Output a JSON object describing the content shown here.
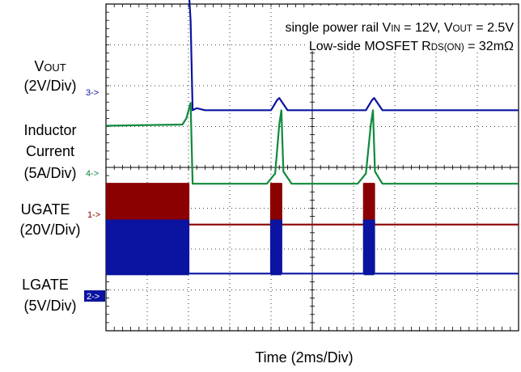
{
  "chart_data": {
    "type": "line",
    "title_lines": [
      "single power rail V_IN = 12V, V_OUT = 2.5V",
      "Low-side MOSFET R_DS(ON) = 32mΩ"
    ],
    "title_parts": [
      [
        {
          "t": "single power rail V"
        },
        {
          "t": "IN",
          "sub": true
        },
        {
          "t": " = 12V, V"
        },
        {
          "t": "OUT",
          "sub": true
        },
        {
          "t": " = 2.5V"
        }
      ],
      [
        {
          "t": "Low-side MOSFET R"
        },
        {
          "t": "DS(ON)",
          "sub": true
        },
        {
          "t": " = 32mΩ"
        }
      ]
    ],
    "xlabel": "Time (2ms/Div)",
    "x_divisions": 10,
    "y_divisions": 8,
    "x_unit": "div",
    "grid": true,
    "channel_labels": [
      {
        "name": "V_OUT",
        "parts": [
          {
            "t": "V"
          },
          {
            "t": "OUT",
            "sub": true
          }
        ],
        "scale": "(2V/Div)",
        "marker": "3->",
        "color": "#0a14a0"
      },
      {
        "name": "Inductor Current",
        "lines": [
          "Inductor",
          "Current"
        ],
        "scale": "(5A/Div)",
        "marker": "4->",
        "color": "#108a3c"
      },
      {
        "name": "UGATE",
        "scale": "(20V/Div)",
        "marker": "1->",
        "color": "#8b0000"
      },
      {
        "name": "LGATE",
        "scale": "(5V/Div)",
        "marker": "2->",
        "color": "#0a14a0"
      }
    ],
    "series": [
      {
        "name": "V_OUT",
        "color": "#0a14a0",
        "baseline_div": 1.4,
        "x": [
          0,
          1.95,
          2.0,
          2.05,
          2.1,
          2.2,
          2.4,
          4.0,
          4.15,
          4.2,
          4.3,
          4.4,
          6.3,
          6.45,
          6.5,
          6.6,
          6.7,
          10
        ],
        "y": [
          3.2,
          3.2,
          3.05,
          2.2,
          0.0,
          0.05,
          0.0,
          0.0,
          0.25,
          0.3,
          0.15,
          0.0,
          0.0,
          0.25,
          0.3,
          0.15,
          0.0,
          0.0
        ]
      },
      {
        "name": "Inductor Current",
        "color": "#108a3c",
        "baseline_div": -0.4,
        "x": [
          0,
          1.85,
          1.95,
          2.05,
          2.1,
          2.3,
          3.9,
          4.1,
          4.2,
          4.25,
          4.3,
          4.5,
          6.1,
          6.3,
          6.42,
          6.47,
          6.52,
          6.7,
          10
        ],
        "y": [
          1.42,
          1.45,
          1.6,
          1.98,
          0.0,
          0.0,
          0.0,
          0.25,
          1.45,
          1.8,
          0.3,
          0.0,
          0.0,
          0.25,
          1.45,
          1.8,
          0.3,
          0.0,
          0.0
        ]
      },
      {
        "name": "UGATE",
        "color": "#8b0000",
        "baseline_div": -1.4,
        "x": [
          0,
          2.0,
          2.0,
          4.0,
          4.0,
          4.25,
          4.25,
          6.25,
          6.25,
          6.5,
          6.5,
          10
        ],
        "y": [
          1.0,
          1.0,
          0.0,
          0.0,
          1.0,
          1.0,
          0.0,
          0.0,
          1.0,
          1.0,
          0.0,
          0.0
        ],
        "dense_switching": [
          [
            0,
            2.0
          ],
          [
            4.0,
            4.25
          ],
          [
            6.25,
            6.5
          ]
        ]
      },
      {
        "name": "LGATE",
        "color": "#0a14a0",
        "baseline_div": -2.6,
        "x": [
          0,
          2.0,
          2.0,
          4.0,
          4.0,
          4.25,
          4.25,
          6.25,
          6.25,
          6.5,
          6.5,
          10
        ],
        "y": [
          1.3,
          1.3,
          0.0,
          0.0,
          1.3,
          1.3,
          0.0,
          0.0,
          1.3,
          1.3,
          0.0,
          0.0
        ],
        "dense_switching": [
          [
            0,
            2.0
          ],
          [
            4.0,
            4.25
          ],
          [
            6.25,
            6.5
          ]
        ]
      }
    ]
  }
}
